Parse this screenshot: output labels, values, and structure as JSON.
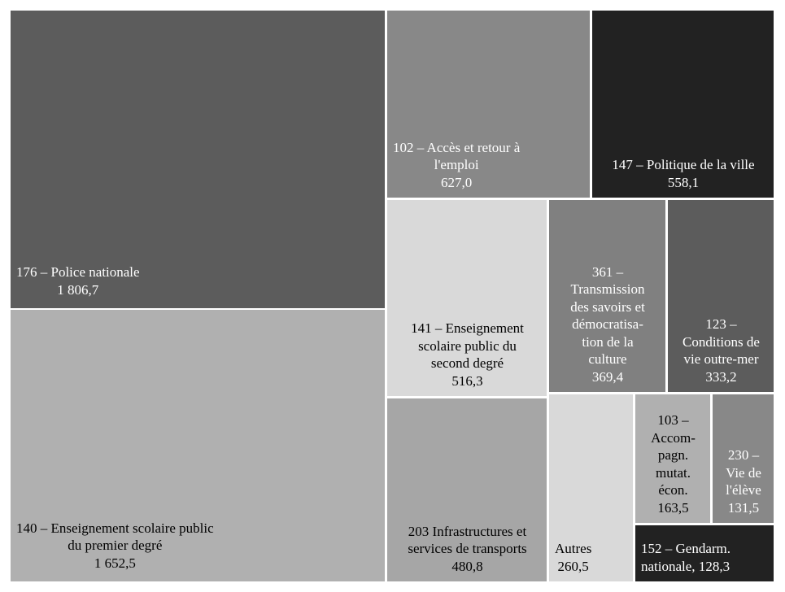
{
  "chart_data": {
    "type": "treemap",
    "unit": "",
    "tiles": [
      {
        "label": "176 – Police nationale",
        "value": "1 806,7",
        "color": "#5c5c5c",
        "text_color": "#ffffff"
      },
      {
        "label": "140 – Enseignement scolaire public\ndu premier degré",
        "value": "1 652,5",
        "color": "#b0b0b0",
        "text_color": "#000000"
      },
      {
        "label": "102 – Accès et retour à\nl'emploi",
        "value": "627,0",
        "color": "#888888",
        "text_color": "#ffffff"
      },
      {
        "label": "147 – Politique de la ville",
        "value": "558,1",
        "color": "#222222",
        "text_color": "#ffffff"
      },
      {
        "label": "141 – Enseignement\nscolaire public du\nsecond degré",
        "value": "516,3",
        "color": "#d9d9d9",
        "text_color": "#000000"
      },
      {
        "label": "361 –\nTransmission\ndes savoirs et\ndémocratisa-\ntion de la\nculture",
        "value": "369,4",
        "color": "#808080",
        "text_color": "#ffffff"
      },
      {
        "label": "123 –\nConditions de\nvie outre-mer",
        "value": "333,2",
        "color": "#5c5c5c",
        "text_color": "#ffffff"
      },
      {
        "label": "203 Infrastructures et\nservices de transports",
        "value": "480,8",
        "color": "#a6a6a6",
        "text_color": "#000000"
      },
      {
        "label": "Autres",
        "value": "260,5",
        "color": "#d9d9d9",
        "text_color": "#000000"
      },
      {
        "label": "103 –\nAccom-\npagn.\nmutat.\nécon.",
        "value": "163,5",
        "color": "#b0b0b0",
        "text_color": "#000000"
      },
      {
        "label": "230 –\nVie de\nl'élève",
        "value": "131,5",
        "color": "#888888",
        "text_color": "#ffffff"
      },
      {
        "label": "152 – Gendarm.\nnationale, ",
        "value": "128,3",
        "color": "#222222",
        "text_color": "#ffffff"
      }
    ]
  }
}
